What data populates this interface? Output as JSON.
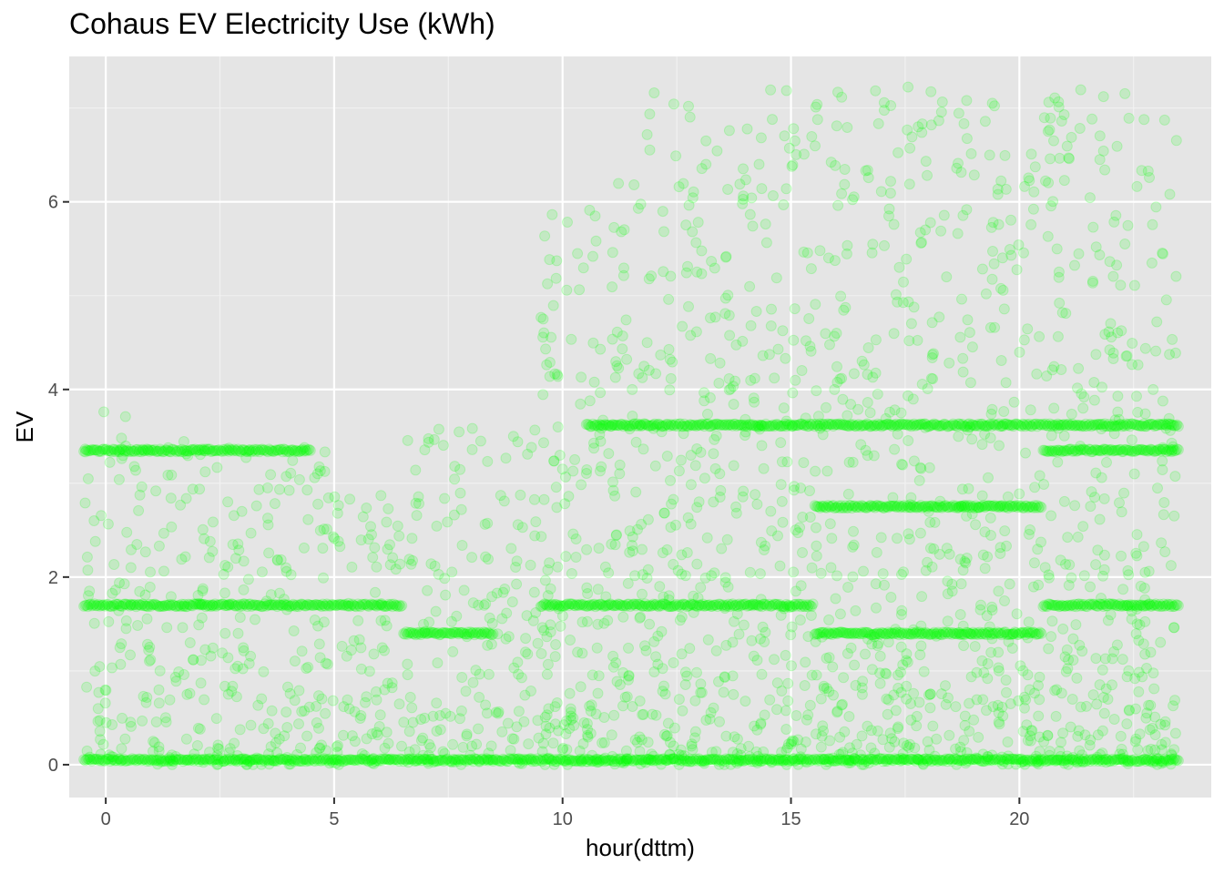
{
  "chart_data": {
    "type": "scatter",
    "title": "Cohaus EV Electricity Use (kWh)",
    "xlabel": "hour(dttm)",
    "ylabel": "EV",
    "xlim": [
      -0.8,
      24.2
    ],
    "ylim": [
      -0.35,
      7.55
    ],
    "x_ticks": [
      0,
      5,
      10,
      15,
      20
    ],
    "y_ticks": [
      0,
      2,
      4,
      6
    ],
    "grid": true,
    "legend": "none",
    "point_color": "#00FF00",
    "point_alpha": 0.15,
    "background_color": "#E5E5E5",
    "bands": [
      {
        "value": 0.05,
        "hours": [
          0,
          1,
          2,
          3,
          4,
          5,
          6,
          7,
          8,
          9,
          10,
          11,
          12,
          13,
          14,
          15,
          16,
          17,
          18,
          19,
          20,
          21,
          22,
          23
        ]
      },
      {
        "value": 1.7,
        "hours": [
          0,
          1,
          2,
          3,
          4,
          5,
          6,
          10,
          11,
          12,
          13,
          14,
          15,
          21,
          22,
          23
        ]
      },
      {
        "value": 1.4,
        "hours": [
          7,
          8,
          16,
          17,
          18,
          19,
          20
        ]
      },
      {
        "value": 3.35,
        "hours": [
          0,
          1,
          2,
          3,
          4,
          21,
          22,
          23
        ]
      },
      {
        "value": 3.62,
        "hours": [
          11,
          12,
          13,
          14,
          15,
          16,
          17,
          18,
          19,
          20,
          21,
          22,
          23
        ]
      },
      {
        "value": 2.75,
        "hours": [
          16,
          17,
          18,
          19,
          20
        ]
      }
    ],
    "scatter_density_by_hour": [
      {
        "hour": 0,
        "max": 3.9
      },
      {
        "hour": 1,
        "max": 3.6
      },
      {
        "hour": 2,
        "max": 3.5
      },
      {
        "hour": 3,
        "max": 3.4
      },
      {
        "hour": 4,
        "max": 3.4
      },
      {
        "hour": 5,
        "max": 3.4
      },
      {
        "hour": 6,
        "max": 2.9
      },
      {
        "hour": 7,
        "max": 3.6
      },
      {
        "hour": 8,
        "max": 3.6
      },
      {
        "hour": 9,
        "max": 3.6
      },
      {
        "hour": 10,
        "max": 5.9
      },
      {
        "hour": 11,
        "max": 6.2
      },
      {
        "hour": 12,
        "max": 7.2
      },
      {
        "hour": 13,
        "max": 7.2
      },
      {
        "hour": 14,
        "max": 6.8
      },
      {
        "hour": 15,
        "max": 7.2
      },
      {
        "hour": 16,
        "max": 7.2
      },
      {
        "hour": 17,
        "max": 7.2
      },
      {
        "hour": 18,
        "max": 7.25
      },
      {
        "hour": 19,
        "max": 7.2
      },
      {
        "hour": 20,
        "max": 6.8
      },
      {
        "hour": 21,
        "max": 7.25
      },
      {
        "hour": 22,
        "max": 7.25
      },
      {
        "hour": 23,
        "max": 7.0
      }
    ]
  }
}
